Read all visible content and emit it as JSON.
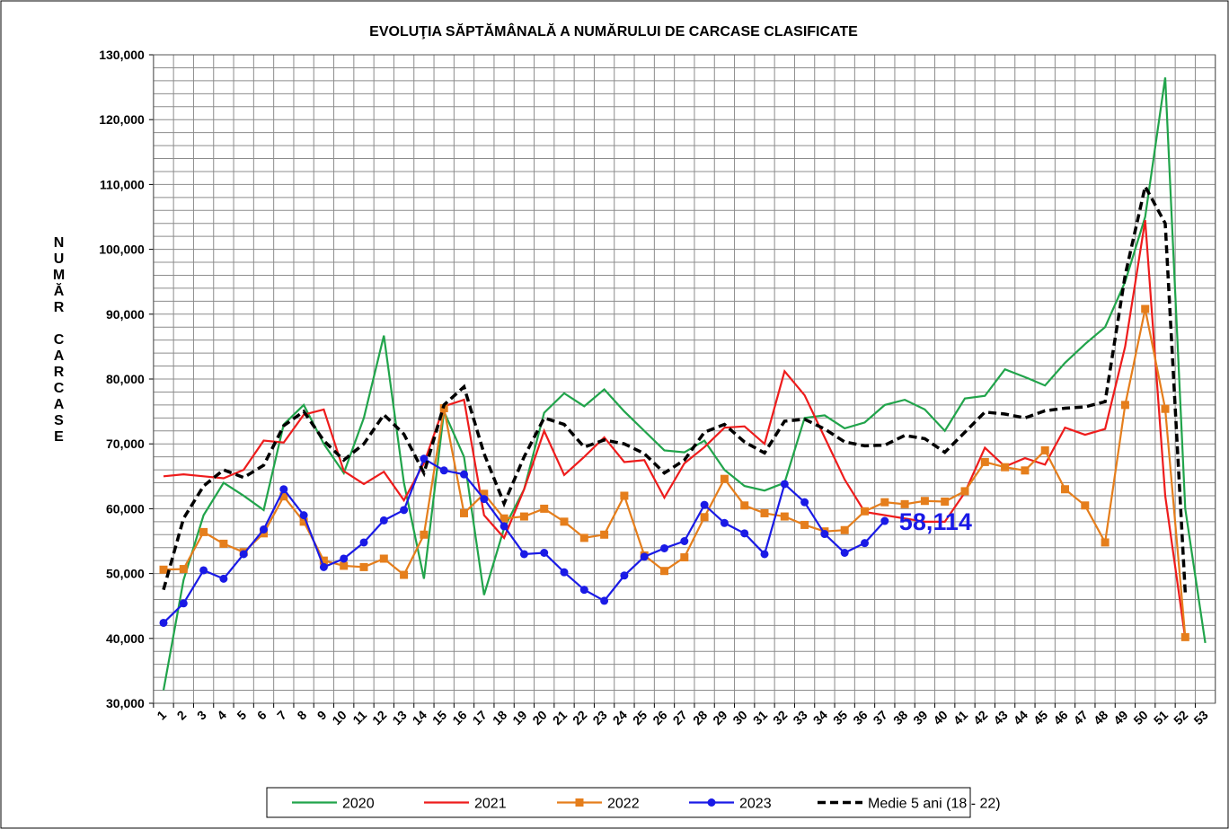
{
  "chart_data": {
    "type": "line",
    "title": "EVOLUŢIA  SĂPTĂMÂNALĂ  A NUMĂRULUI DE CARCASE   CLASIFICATE",
    "ylabel": "NUMĂR CARCASE",
    "categories": [
      "1",
      "2",
      "3",
      "4",
      "5",
      "6",
      "7",
      "8",
      "9",
      "10",
      "11",
      "12",
      "13",
      "14",
      "15",
      "16",
      "17",
      "18",
      "19",
      "20",
      "21",
      "22",
      "23",
      "24",
      "25",
      "26",
      "27",
      "28",
      "29",
      "30",
      "31",
      "32",
      "33",
      "34",
      "35",
      "36",
      "37",
      "38",
      "39",
      "40",
      "41",
      "42",
      "43",
      "44",
      "45",
      "46",
      "47",
      "48",
      "49",
      "50",
      "51",
      "52",
      "53"
    ],
    "ylim": [
      30000,
      130000
    ],
    "yticks": [
      {
        "value": 30000,
        "label": "30,000"
      },
      {
        "value": 40000,
        "label": "40,000"
      },
      {
        "value": 50000,
        "label": "50,000"
      },
      {
        "value": 60000,
        "label": "60,000"
      },
      {
        "value": 70000,
        "label": "70,000"
      },
      {
        "value": 80000,
        "label": "80,000"
      },
      {
        "value": 90000,
        "label": "90,000"
      },
      {
        "value": 100000,
        "label": "100,000"
      },
      {
        "value": 110000,
        "label": "110,000"
      },
      {
        "value": 120000,
        "label": "120,000"
      },
      {
        "value": 130000,
        "label": "130,000"
      }
    ],
    "grid": true,
    "legend": "bottom",
    "series": [
      {
        "name": "2020",
        "color": "#21a44b",
        "marker": "none",
        "dash": false,
        "values": [
          32000,
          49000,
          59000,
          64000,
          62000,
          59800,
          73000,
          76000,
          70000,
          65500,
          74000,
          86700,
          64000,
          49200,
          75000,
          68000,
          46700,
          57000,
          63000,
          74800,
          77800,
          75800,
          78400,
          75000,
          72000,
          69000,
          68700,
          70500,
          66000,
          63500,
          62800,
          64000,
          74000,
          74400,
          72400,
          73300,
          76000,
          76800,
          75300,
          72000,
          77000,
          77400,
          81500,
          80300,
          79000,
          82500,
          85400,
          88000,
          95000,
          105000,
          126500,
          60000,
          39300
        ]
      },
      {
        "name": "2021",
        "color": "#ee1c1c",
        "marker": "none",
        "dash": false,
        "values": [
          65000,
          65300,
          65000,
          64700,
          66000,
          70500,
          70200,
          74500,
          75300,
          65800,
          63800,
          65700,
          61300,
          67000,
          75800,
          76800,
          59000,
          55500,
          63000,
          72000,
          65200,
          68000,
          71000,
          67200,
          67500,
          61700,
          67000,
          69500,
          72500,
          72700,
          70000,
          81200,
          77500,
          71000,
          64500,
          59500,
          59000,
          58500,
          58000,
          58000,
          62500,
          69400,
          66500,
          67800,
          66800,
          72500,
          71400,
          72300,
          85000,
          104500,
          62000,
          40000,
          null
        ]
      },
      {
        "name": "2022",
        "color": "#e57e1c",
        "marker": "square",
        "dash": false,
        "values": [
          50600,
          50700,
          56400,
          54600,
          53300,
          56200,
          61900,
          58000,
          52000,
          51200,
          51000,
          52300,
          49800,
          56000,
          75500,
          59300,
          62300,
          58500,
          58800,
          60000,
          58000,
          55500,
          56000,
          62000,
          52800,
          50400,
          52500,
          58700,
          64600,
          60500,
          59300,
          58800,
          57500,
          56500,
          56700,
          59600,
          61000,
          60700,
          61200,
          61100,
          62700,
          67200,
          66400,
          65900,
          69000,
          63000,
          60500,
          54800,
          76000,
          90800,
          75400,
          40200,
          null
        ]
      },
      {
        "name": "2023",
        "color": "#1a1ae6",
        "marker": "circle",
        "dash": false,
        "values": [
          42400,
          45400,
          50500,
          49200,
          53000,
          56800,
          63000,
          59000,
          51000,
          52300,
          54800,
          58200,
          59800,
          67700,
          65900,
          65300,
          61500,
          57300,
          53000,
          53200,
          50200,
          47500,
          45800,
          49700,
          52600,
          53900,
          55000,
          60600,
          57800,
          56200,
          53000,
          63800,
          61000,
          56100,
          53200,
          54700,
          58114,
          null,
          null,
          null,
          null,
          null,
          null,
          null,
          null,
          null,
          null,
          null,
          null,
          null,
          null,
          null,
          null
        ],
        "value_labels": [
          null,
          null,
          null,
          null,
          null,
          null,
          null,
          null,
          null,
          null,
          null,
          null,
          null,
          null,
          null,
          null,
          null,
          null,
          null,
          null,
          null,
          null,
          null,
          null,
          null,
          null,
          null,
          null,
          null,
          null,
          null,
          null,
          null,
          null,
          null,
          null,
          "58,114",
          null,
          null,
          null,
          null,
          null,
          null,
          null,
          null,
          null,
          null,
          null,
          null,
          null,
          null,
          null,
          null
        ]
      },
      {
        "name": "Medie 5 ani (18 - 22)",
        "color": "#000000",
        "marker": "none",
        "dash": true,
        "values": [
          47500,
          58500,
          63500,
          66000,
          64800,
          66700,
          72800,
          75000,
          70500,
          67500,
          70000,
          74500,
          71500,
          65500,
          76000,
          78800,
          68500,
          60800,
          68000,
          74000,
          73000,
          69500,
          70600,
          70000,
          68500,
          65500,
          67500,
          71800,
          73000,
          70300,
          68600,
          73500,
          73800,
          72300,
          70300,
          69700,
          69800,
          71300,
          70800,
          68700,
          71800,
          74900,
          74600,
          74000,
          75100,
          75500,
          75700,
          76500,
          96000,
          109700,
          104000,
          47000,
          null
        ]
      }
    ]
  }
}
